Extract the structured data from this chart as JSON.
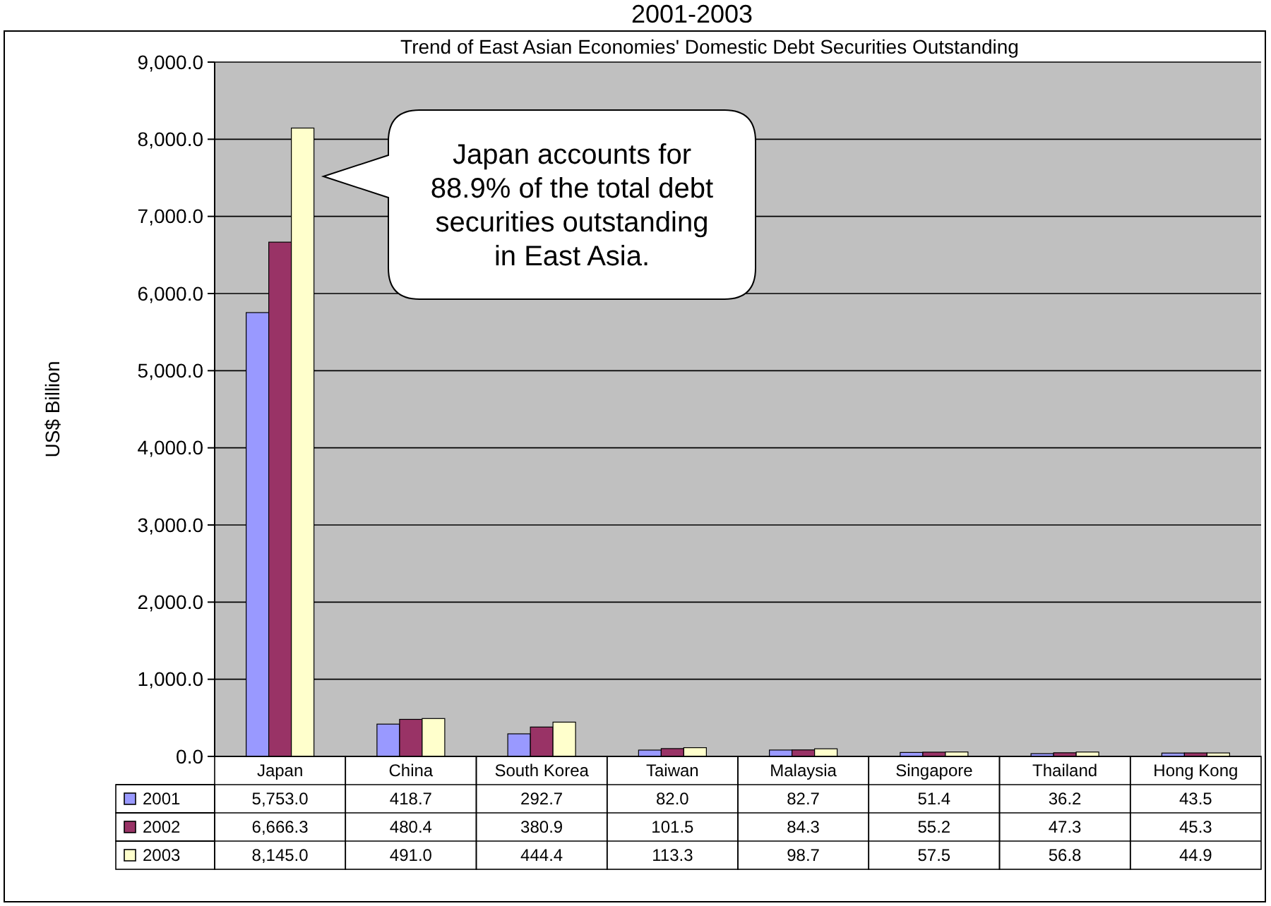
{
  "chart_data": {
    "type": "bar",
    "title": "2001-2003",
    "subtitle": "Trend of East Asian Economies' Domestic Debt Securities Outstanding",
    "ylabel": "US$ Billion",
    "categories": [
      "Japan",
      "China",
      "South Korea",
      "Taiwan",
      "Malaysia",
      "Singapore",
      "Thailand",
      "Hong Kong"
    ],
    "series": [
      {
        "name": "2001",
        "color": "#9999ff",
        "values": [
          5753.0,
          418.7,
          292.7,
          82.0,
          82.7,
          51.4,
          36.2,
          43.5
        ],
        "value_labels": [
          "5,753.0",
          "418.7",
          "292.7",
          "82.0",
          "82.7",
          "51.4",
          "36.2",
          "43.5"
        ]
      },
      {
        "name": "2002",
        "color": "#993366",
        "values": [
          6666.3,
          480.4,
          380.9,
          101.5,
          84.3,
          55.2,
          47.3,
          45.3
        ],
        "value_labels": [
          "6,666.3",
          "480.4",
          "380.9",
          "101.5",
          "84.3",
          "55.2",
          "47.3",
          "45.3"
        ]
      },
      {
        "name": "2003",
        "color": "#ffffcc",
        "values": [
          8145.0,
          491.0,
          444.4,
          113.3,
          98.7,
          57.5,
          56.8,
          44.9
        ],
        "value_labels": [
          "8,145.0",
          "491.0",
          "444.4",
          "113.3",
          "98.7",
          "57.5",
          "56.8",
          "44.9"
        ]
      }
    ],
    "ylim": [
      0,
      9000
    ],
    "yticks": [
      {
        "value": 0,
        "label": "0.0"
      },
      {
        "value": 1000,
        "label": "1,000.0"
      },
      {
        "value": 2000,
        "label": "2,000.0"
      },
      {
        "value": 3000,
        "label": "3,000.0"
      },
      {
        "value": 4000,
        "label": "4,000.0"
      },
      {
        "value": 5000,
        "label": "5,000.0"
      },
      {
        "value": 6000,
        "label": "6,000.0"
      },
      {
        "value": 7000,
        "label": "7,000.0"
      },
      {
        "value": 8000,
        "label": "8,000.0"
      },
      {
        "value": 9000,
        "label": "9,000.0"
      }
    ],
    "grid": "y",
    "legend": "bottom",
    "annotations": [
      "Japan accounts for 88.9% of the total debt securities outstanding in East Asia."
    ]
  }
}
